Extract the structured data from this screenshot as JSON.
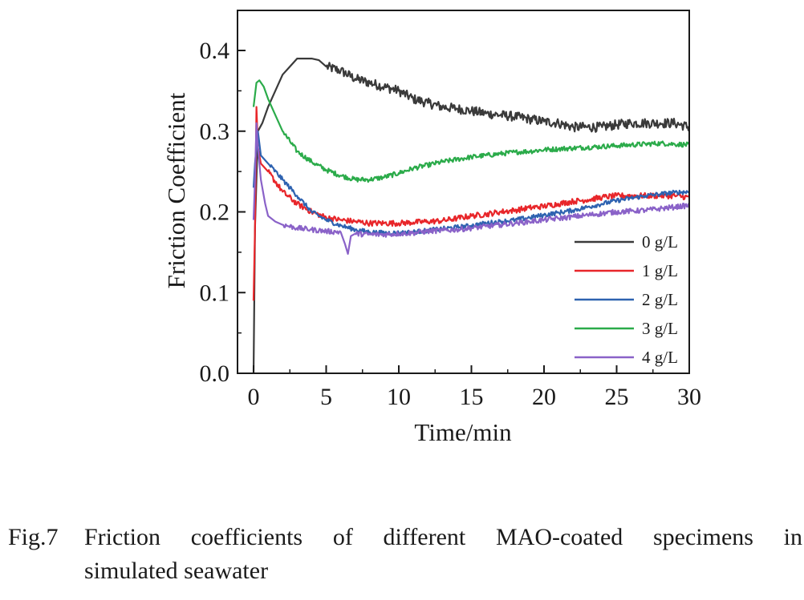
{
  "chart_data": {
    "type": "line",
    "xlabel": "Time/min",
    "ylabel": "Friction Coefficient",
    "xlim": [
      0,
      30
    ],
    "ylim": [
      0,
      0.45
    ],
    "xticks": [
      "0",
      "5",
      "10",
      "15",
      "20",
      "25",
      "30"
    ],
    "yticks": [
      "0.0",
      "0.1",
      "0.2",
      "0.3",
      "0.4"
    ],
    "grid": false,
    "legend_position": "bottom-right",
    "series": [
      {
        "name": "0 g/L",
        "color": "#3a3a3a",
        "x": [
          0,
          0.1,
          0.3,
          0.6,
          1.0,
          1.5,
          2.0,
          2.5,
          3.0,
          3.5,
          4.0,
          4.5,
          5,
          6,
          7,
          8,
          9,
          10,
          11,
          12,
          13,
          14,
          15,
          16,
          17,
          18,
          19,
          20,
          21,
          22,
          23,
          24,
          25,
          26,
          27,
          28,
          29,
          30
        ],
        "y": [
          0.0,
          0.18,
          0.3,
          0.31,
          0.33,
          0.35,
          0.37,
          0.38,
          0.39,
          0.39,
          0.39,
          0.388,
          0.38,
          0.375,
          0.365,
          0.36,
          0.355,
          0.35,
          0.34,
          0.335,
          0.33,
          0.328,
          0.325,
          0.322,
          0.32,
          0.318,
          0.315,
          0.312,
          0.31,
          0.305,
          0.305,
          0.305,
          0.308,
          0.31,
          0.31,
          0.31,
          0.31,
          0.305
        ]
      },
      {
        "name": "1 g/L",
        "color": "#e8262a",
        "x": [
          0,
          0.1,
          0.2,
          0.3,
          0.5,
          1,
          2,
          3,
          4,
          5,
          6,
          7,
          8,
          9,
          10,
          11,
          12,
          13,
          14,
          15,
          16,
          17,
          18,
          19,
          20,
          21,
          22,
          23,
          24,
          25,
          26,
          27,
          28,
          29,
          30
        ],
        "y": [
          0.09,
          0.18,
          0.33,
          0.28,
          0.26,
          0.25,
          0.225,
          0.21,
          0.2,
          0.193,
          0.19,
          0.188,
          0.186,
          0.186,
          0.186,
          0.187,
          0.188,
          0.189,
          0.192,
          0.195,
          0.197,
          0.2,
          0.202,
          0.205,
          0.207,
          0.21,
          0.213,
          0.215,
          0.218,
          0.22,
          0.22,
          0.22,
          0.22,
          0.22,
          0.218
        ]
      },
      {
        "name": "2 g/L",
        "color": "#2e62b0",
        "x": [
          0,
          0.1,
          0.3,
          0.5,
          1,
          2,
          3,
          4,
          5,
          6,
          7,
          8,
          9,
          10,
          11,
          12,
          13,
          14,
          15,
          16,
          17,
          18,
          19,
          20,
          21,
          22,
          23,
          24,
          25,
          26,
          27,
          28,
          29,
          30
        ],
        "y": [
          0.23,
          0.26,
          0.3,
          0.27,
          0.26,
          0.24,
          0.22,
          0.2,
          0.19,
          0.183,
          0.178,
          0.175,
          0.174,
          0.174,
          0.175,
          0.177,
          0.179,
          0.181,
          0.183,
          0.186,
          0.188,
          0.19,
          0.193,
          0.196,
          0.199,
          0.202,
          0.206,
          0.21,
          0.214,
          0.217,
          0.22,
          0.222,
          0.224,
          0.225
        ]
      },
      {
        "name": "3 g/L",
        "color": "#2bab4a",
        "x": [
          0,
          0.2,
          0.4,
          0.7,
          1,
          1.5,
          2,
          3,
          4,
          5,
          6,
          7,
          8,
          9,
          10,
          11,
          12,
          13,
          14,
          15,
          16,
          17,
          18,
          19,
          20,
          21,
          22,
          23,
          24,
          25,
          26,
          27,
          28,
          29,
          30
        ],
        "y": [
          0.33,
          0.36,
          0.363,
          0.355,
          0.34,
          0.32,
          0.3,
          0.275,
          0.262,
          0.252,
          0.245,
          0.24,
          0.24,
          0.243,
          0.248,
          0.254,
          0.258,
          0.262,
          0.265,
          0.268,
          0.27,
          0.272,
          0.274,
          0.275,
          0.277,
          0.278,
          0.279,
          0.28,
          0.281,
          0.282,
          0.283,
          0.284,
          0.285,
          0.284,
          0.283
        ]
      },
      {
        "name": "4 g/L",
        "color": "#8a62c8",
        "x": [
          0,
          0.1,
          0.2,
          0.3,
          0.5,
          0.8,
          1.0,
          1.5,
          2,
          3,
          4,
          5,
          6,
          6.3,
          6.5,
          6.7,
          7,
          8,
          9,
          10,
          11,
          12,
          13,
          14,
          15,
          16,
          17,
          18,
          19,
          20,
          21,
          22,
          23,
          24,
          25,
          26,
          27,
          28,
          29,
          30
        ],
        "y": [
          0.19,
          0.24,
          0.31,
          0.28,
          0.24,
          0.21,
          0.195,
          0.188,
          0.184,
          0.18,
          0.178,
          0.176,
          0.175,
          0.16,
          0.148,
          0.17,
          0.173,
          0.172,
          0.172,
          0.173,
          0.174,
          0.176,
          0.177,
          0.178,
          0.18,
          0.182,
          0.184,
          0.186,
          0.188,
          0.19,
          0.192,
          0.194,
          0.196,
          0.198,
          0.2,
          0.201,
          0.202,
          0.204,
          0.206,
          0.208
        ]
      }
    ]
  },
  "caption": {
    "number": "Fig.7",
    "line1": "Friction coefficients of different MAO-coated specimens in",
    "line2": "simulated seawater"
  }
}
